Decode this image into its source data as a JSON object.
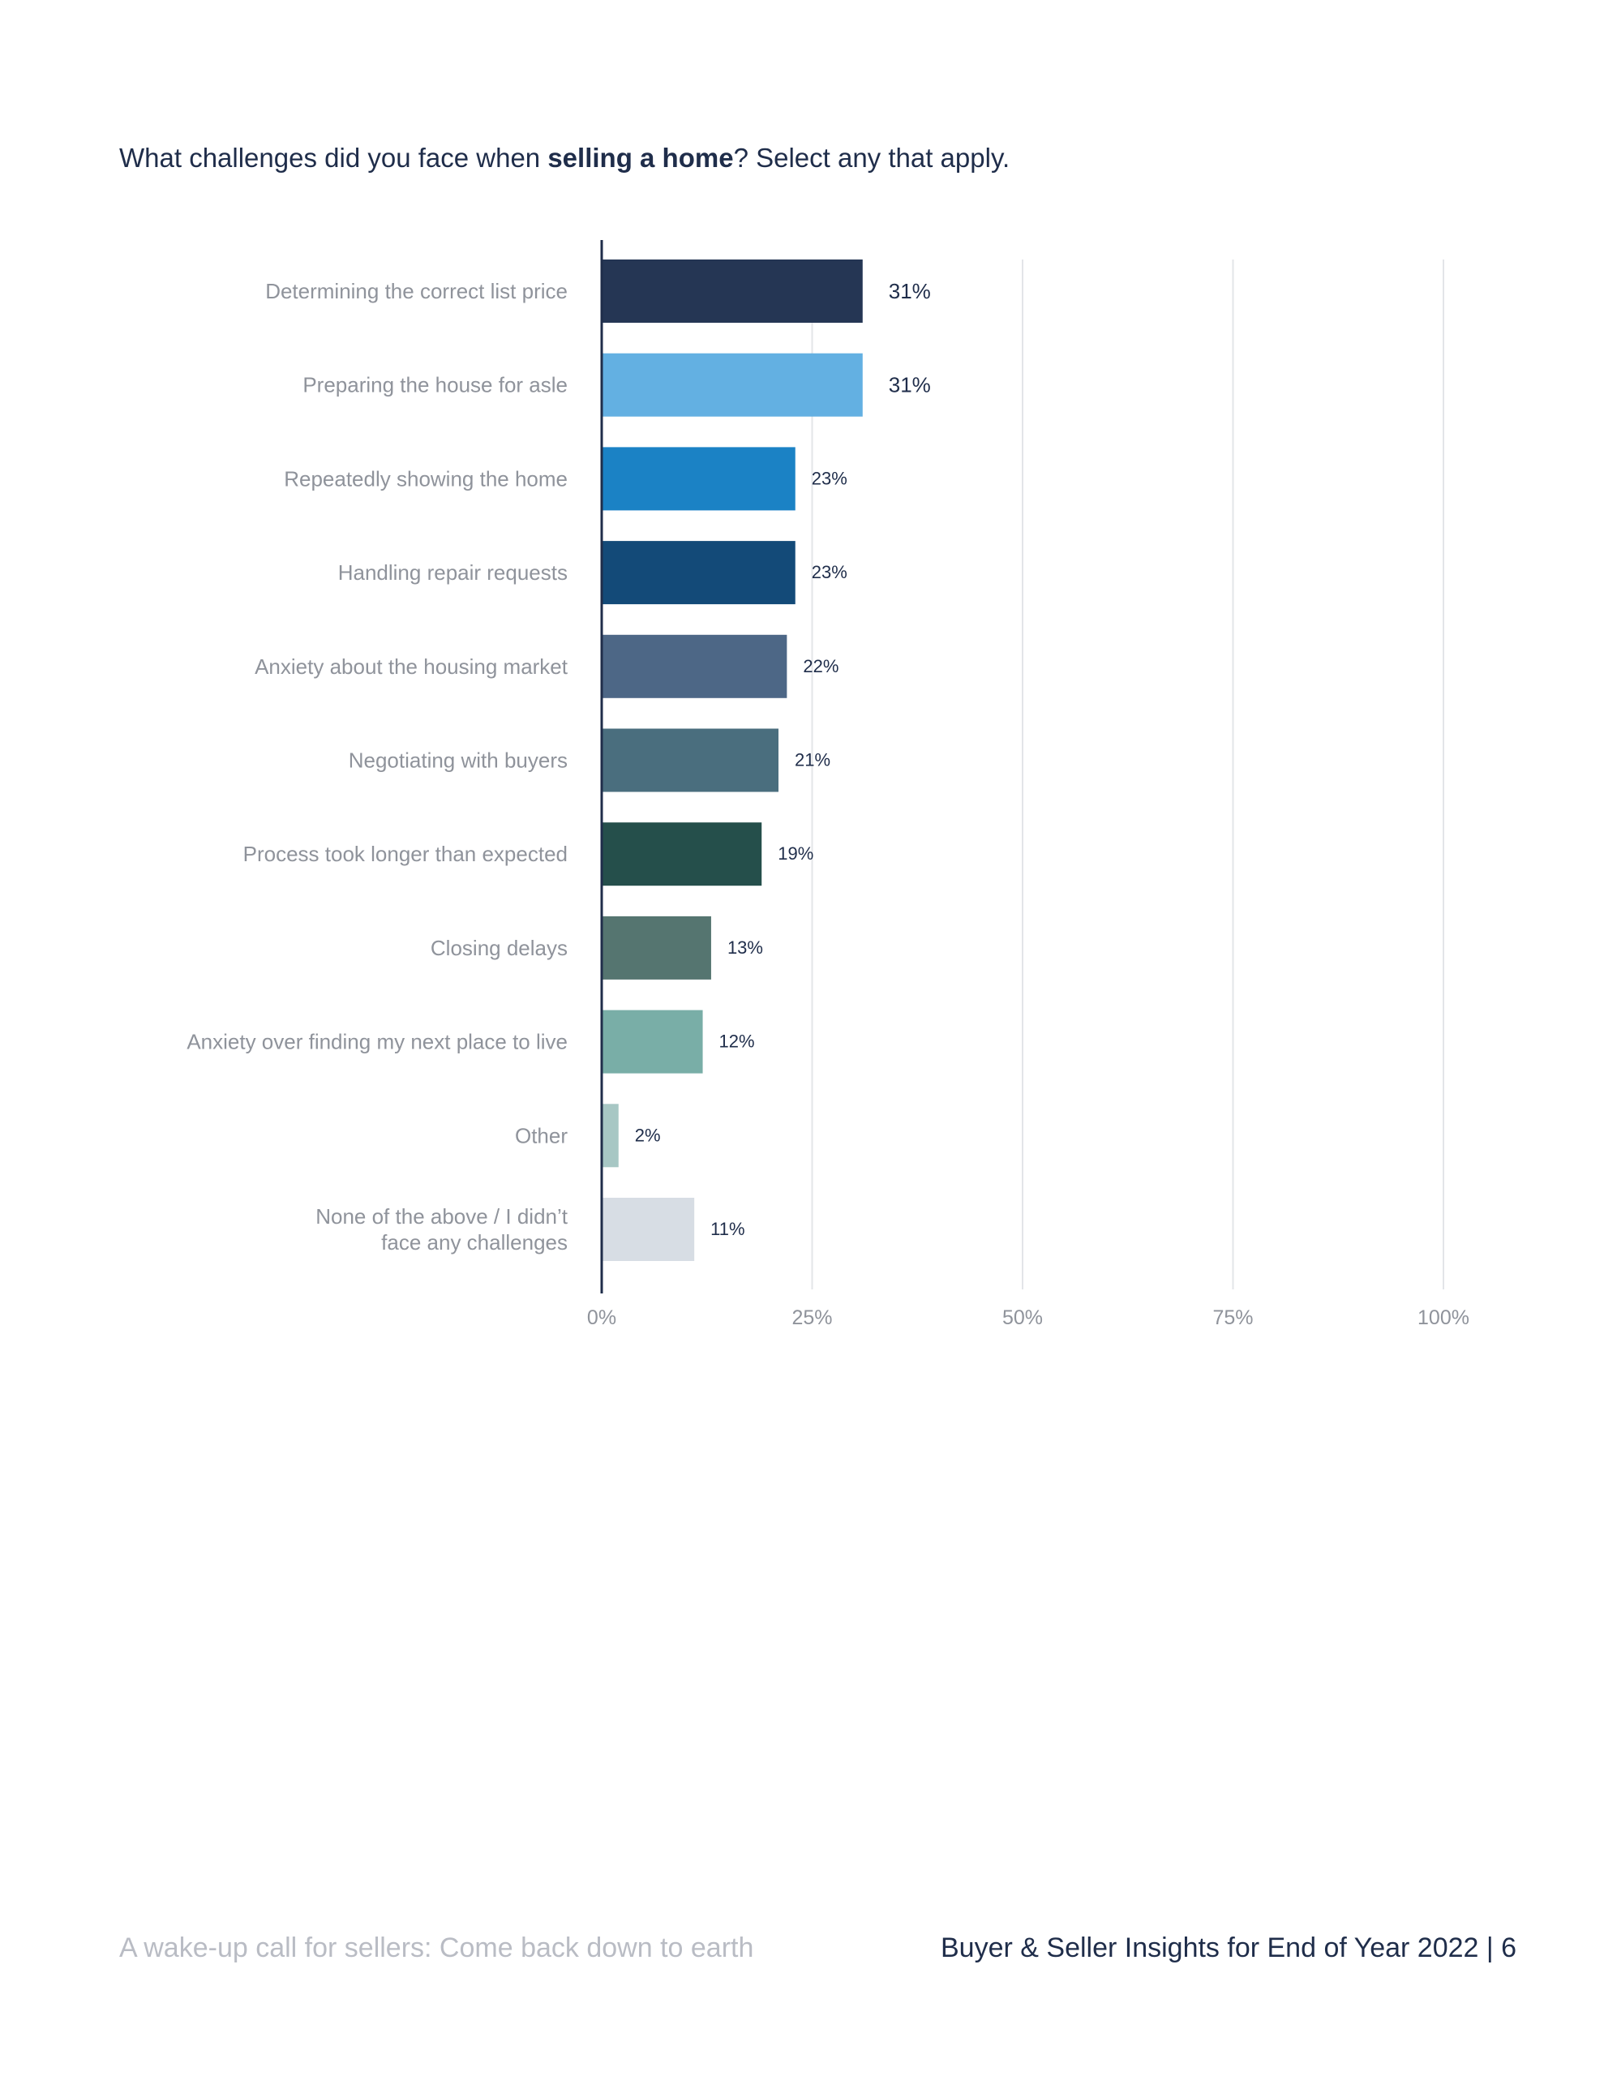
{
  "question": {
    "prefix": "What challenges did you face when ",
    "bold": "selling a home",
    "suffix": "? Select any that apply."
  },
  "chart_data": {
    "type": "bar",
    "orientation": "horizontal",
    "categories": [
      "Determining the correct list price",
      "Preparing the house for asle",
      "Repeatedly showing the home",
      "Handling repair requests",
      "Anxiety about the housing market",
      "Negotiating with buyers",
      "Process took longer than expected",
      "Closing delays",
      "Anxiety over finding my next place to live",
      "Other",
      "None of the above / I didn’t face any challenges"
    ],
    "values": [
      31,
      31,
      23,
      23,
      22,
      21,
      19,
      13,
      12,
      2,
      11
    ],
    "data_labels": [
      "31%",
      "31%",
      "23%",
      "23%",
      "22%",
      "21%",
      "19%",
      "13%",
      "12%",
      "2%",
      "11%"
    ],
    "colors": [
      "#253654",
      "#63b0e2",
      "#1b82c5",
      "#134a78",
      "#4d6786",
      "#4a6e7e",
      "#254f4b",
      "#557570",
      "#79aea7",
      "#a7c7c4",
      "#d7dde4"
    ],
    "x_ticks": [
      "0%",
      "25%",
      "50%",
      "75%",
      "100%"
    ],
    "xlim": [
      0,
      100
    ],
    "grid": true
  },
  "footer": {
    "left": "A wake-up call for sellers: Come back down to earth",
    "right": "Buyer & Seller Insights for End of Year 2022 |  6"
  }
}
